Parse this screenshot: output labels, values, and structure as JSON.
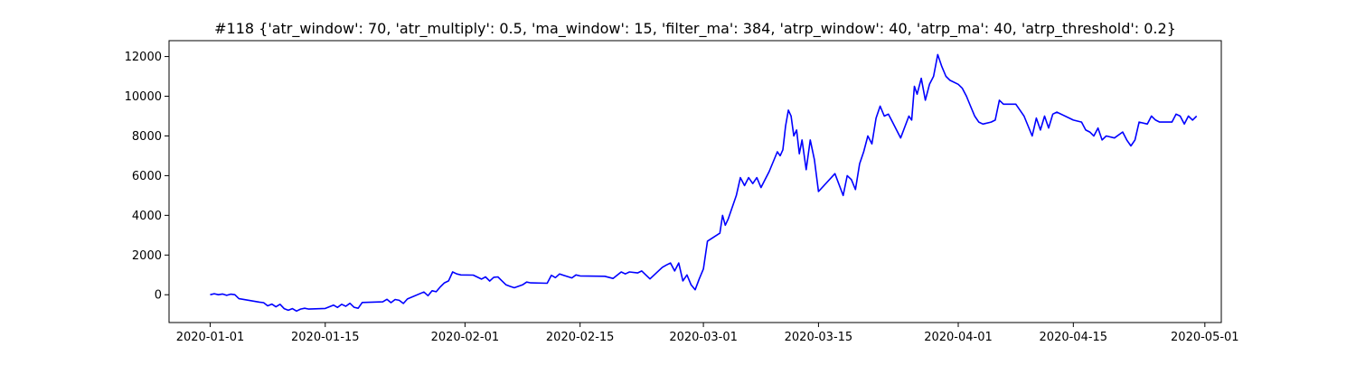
{
  "chart_data": {
    "type": "line",
    "title": "#118 {'atr_window': 70, 'atr_multiply': 0.5, 'ma_window': 15, 'filter_ma': 384, 'atrp_window': 40, 'atrp_ma': 40, 'atrp_threshold': 0.2}",
    "xlabel": "",
    "ylabel": "",
    "x_axis_type": "date",
    "xlim": [
      "2019-12-27",
      "2020-05-03"
    ],
    "ylim": [
      -1400,
      12800
    ],
    "xticks": [
      "2020-01-01",
      "2020-01-15",
      "2020-02-01",
      "2020-02-15",
      "2020-03-01",
      "2020-03-15",
      "2020-04-01",
      "2020-04-15",
      "2020-05-01"
    ],
    "yticks": [
      0,
      2000,
      4000,
      6000,
      8000,
      10000,
      12000
    ],
    "ytick_labels": [
      "0",
      "2000",
      "4000",
      "6000",
      "8000",
      "10000",
      "12000"
    ],
    "grid": false,
    "legend": "none",
    "series": [
      {
        "color": "#0000ff",
        "points": [
          [
            "2020-01-01",
            0
          ],
          [
            "2020-01-01",
            50
          ],
          [
            "2020-01-02",
            0
          ],
          [
            "2020-01-02",
            40
          ],
          [
            "2020-01-03",
            -30
          ],
          [
            "2020-01-03",
            30
          ],
          [
            "2020-01-04",
            0
          ],
          [
            "2020-01-04",
            -200
          ],
          [
            "2020-01-05",
            -230
          ],
          [
            "2020-01-07",
            -370
          ],
          [
            "2020-01-07",
            -400
          ],
          [
            "2020-01-08",
            -560
          ],
          [
            "2020-01-08",
            -470
          ],
          [
            "2020-01-09",
            -610
          ],
          [
            "2020-01-09",
            -480
          ],
          [
            "2020-01-10",
            -700
          ],
          [
            "2020-01-10",
            -780
          ],
          [
            "2020-01-11",
            -700
          ],
          [
            "2020-01-11",
            -820
          ],
          [
            "2020-01-12",
            -720
          ],
          [
            "2020-01-12",
            -680
          ],
          [
            "2020-01-13",
            -720
          ],
          [
            "2020-01-15",
            -690
          ],
          [
            "2020-01-16",
            -520
          ],
          [
            "2020-01-16",
            -640
          ],
          [
            "2020-01-17",
            -480
          ],
          [
            "2020-01-17",
            -580
          ],
          [
            "2020-01-18",
            -430
          ],
          [
            "2020-01-18",
            -630
          ],
          [
            "2020-01-19",
            -680
          ],
          [
            "2020-01-19",
            -390
          ],
          [
            "2020-01-22",
            -360
          ],
          [
            "2020-01-22",
            -230
          ],
          [
            "2020-01-23",
            -400
          ],
          [
            "2020-01-23",
            -240
          ],
          [
            "2020-01-24",
            -280
          ],
          [
            "2020-01-24",
            -440
          ],
          [
            "2020-01-25",
            -210
          ],
          [
            "2020-01-27",
            140
          ],
          [
            "2020-01-27",
            -50
          ],
          [
            "2020-01-28",
            200
          ],
          [
            "2020-01-28",
            150
          ],
          [
            "2020-01-29",
            400
          ],
          [
            "2020-01-29",
            600
          ],
          [
            "2020-01-30",
            700
          ],
          [
            "2020-01-30",
            1150
          ],
          [
            "2020-01-31",
            1050
          ],
          [
            "2020-01-31",
            1000
          ],
          [
            "2020-02-02",
            990
          ],
          [
            "2020-02-03",
            790
          ],
          [
            "2020-02-03",
            900
          ],
          [
            "2020-02-04",
            690
          ],
          [
            "2020-02-04",
            880
          ],
          [
            "2020-02-05",
            900
          ],
          [
            "2020-02-05",
            700
          ],
          [
            "2020-02-06",
            500
          ],
          [
            "2020-02-06",
            420
          ],
          [
            "2020-02-07",
            350
          ],
          [
            "2020-02-08",
            500
          ],
          [
            "2020-02-08",
            640
          ],
          [
            "2020-02-09",
            600
          ],
          [
            "2020-02-11",
            580
          ],
          [
            "2020-02-11",
            980
          ],
          [
            "2020-02-12",
            860
          ],
          [
            "2020-02-12",
            1050
          ],
          [
            "2020-02-13",
            980
          ],
          [
            "2020-02-14",
            850
          ],
          [
            "2020-02-14",
            1000
          ],
          [
            "2020-02-15",
            950
          ],
          [
            "2020-02-18",
            930
          ],
          [
            "2020-02-19",
            820
          ],
          [
            "2020-02-20",
            1150
          ],
          [
            "2020-02-20",
            1050
          ],
          [
            "2020-02-21",
            1150
          ],
          [
            "2020-02-22",
            1100
          ],
          [
            "2020-02-22",
            1200
          ],
          [
            "2020-02-23",
            1000
          ],
          [
            "2020-02-23",
            800
          ],
          [
            "2020-02-25",
            1380
          ],
          [
            "2020-02-25",
            1500
          ],
          [
            "2020-02-26",
            1600
          ],
          [
            "2020-02-26",
            1200
          ],
          [
            "2020-02-27",
            1600
          ],
          [
            "2020-02-27",
            700
          ],
          [
            "2020-02-28",
            1000
          ],
          [
            "2020-02-28",
            500
          ],
          [
            "2020-02-29",
            250
          ],
          [
            "2020-02-29",
            800
          ],
          [
            "2020-03-01",
            1300
          ],
          [
            "2020-03-01",
            2700
          ],
          [
            "2020-03-03",
            3100
          ],
          [
            "2020-03-03",
            4000
          ],
          [
            "2020-03-03",
            3500
          ],
          [
            "2020-03-04",
            3800
          ],
          [
            "2020-03-05",
            5000
          ],
          [
            "2020-03-05",
            5900
          ],
          [
            "2020-03-06",
            5500
          ],
          [
            "2020-03-06",
            5900
          ],
          [
            "2020-03-07",
            5600
          ],
          [
            "2020-03-07",
            5900
          ],
          [
            "2020-03-08",
            5400
          ],
          [
            "2020-03-08",
            5800
          ],
          [
            "2020-03-09",
            6200
          ],
          [
            "2020-03-10",
            7200
          ],
          [
            "2020-03-10",
            7000
          ],
          [
            "2020-03-10",
            7300
          ],
          [
            "2020-03-11",
            8500
          ],
          [
            "2020-03-11",
            9300
          ],
          [
            "2020-03-11",
            9000
          ],
          [
            "2020-03-12",
            8000
          ],
          [
            "2020-03-12",
            8300
          ],
          [
            "2020-03-12",
            7100
          ],
          [
            "2020-03-13",
            7800
          ],
          [
            "2020-03-13",
            6300
          ],
          [
            "2020-03-14",
            7800
          ],
          [
            "2020-03-14",
            6800
          ],
          [
            "2020-03-15",
            5200
          ],
          [
            "2020-03-17",
            6100
          ],
          [
            "2020-03-18",
            5000
          ],
          [
            "2020-03-18",
            6000
          ],
          [
            "2020-03-19",
            5800
          ],
          [
            "2020-03-19",
            5300
          ],
          [
            "2020-03-20",
            6600
          ],
          [
            "2020-03-20",
            7200
          ],
          [
            "2020-03-21",
            8000
          ],
          [
            "2020-03-21",
            7600
          ],
          [
            "2020-03-22",
            8900
          ],
          [
            "2020-03-22",
            9500
          ],
          [
            "2020-03-23",
            9000
          ],
          [
            "2020-03-23",
            9100
          ],
          [
            "2020-03-24",
            8700
          ],
          [
            "2020-03-25",
            7900
          ],
          [
            "2020-03-26",
            9000
          ],
          [
            "2020-03-26",
            8800
          ],
          [
            "2020-03-26",
            10500
          ],
          [
            "2020-03-27",
            10100
          ],
          [
            "2020-03-27",
            10900
          ],
          [
            "2020-03-28",
            9800
          ],
          [
            "2020-03-28",
            10600
          ],
          [
            "2020-03-29",
            11000
          ],
          [
            "2020-03-29",
            12100
          ],
          [
            "2020-03-30",
            11500
          ],
          [
            "2020-03-30",
            11000
          ],
          [
            "2020-03-31",
            10800
          ],
          [
            "2020-04-01",
            10600
          ],
          [
            "2020-04-01",
            10400
          ],
          [
            "2020-04-02",
            10000
          ],
          [
            "2020-04-02",
            9500
          ],
          [
            "2020-04-03",
            9000
          ],
          [
            "2020-04-03",
            8700
          ],
          [
            "2020-04-04",
            8600
          ],
          [
            "2020-04-05",
            8700
          ],
          [
            "2020-04-05",
            8800
          ],
          [
            "2020-04-06",
            9800
          ],
          [
            "2020-04-06",
            9600
          ],
          [
            "2020-04-08",
            9600
          ],
          [
            "2020-04-09",
            9000
          ],
          [
            "2020-04-09",
            8500
          ],
          [
            "2020-04-10",
            8000
          ],
          [
            "2020-04-10",
            8900
          ],
          [
            "2020-04-11",
            8300
          ],
          [
            "2020-04-11",
            9000
          ],
          [
            "2020-04-12",
            8400
          ],
          [
            "2020-04-12",
            9100
          ],
          [
            "2020-04-13",
            9200
          ],
          [
            "2020-04-15",
            8800
          ],
          [
            "2020-04-16",
            8700
          ],
          [
            "2020-04-16",
            8300
          ],
          [
            "2020-04-17",
            8200
          ],
          [
            "2020-04-17",
            8000
          ],
          [
            "2020-04-18",
            8400
          ],
          [
            "2020-04-18",
            7800
          ],
          [
            "2020-04-19",
            8000
          ],
          [
            "2020-04-20",
            7900
          ],
          [
            "2020-04-21",
            8200
          ],
          [
            "2020-04-21",
            7800
          ],
          [
            "2020-04-22",
            7500
          ],
          [
            "2020-04-22",
            7800
          ],
          [
            "2020-04-23",
            8700
          ],
          [
            "2020-04-24",
            8600
          ],
          [
            "2020-04-24",
            9000
          ],
          [
            "2020-04-25",
            8800
          ],
          [
            "2020-04-25",
            8700
          ],
          [
            "2020-04-27",
            8700
          ],
          [
            "2020-04-27",
            9100
          ],
          [
            "2020-04-28",
            9000
          ],
          [
            "2020-04-28",
            8600
          ],
          [
            "2020-04-29",
            9000
          ],
          [
            "2020-04-29",
            8800
          ],
          [
            "2020-04-30",
            9000
          ]
        ]
      }
    ]
  }
}
